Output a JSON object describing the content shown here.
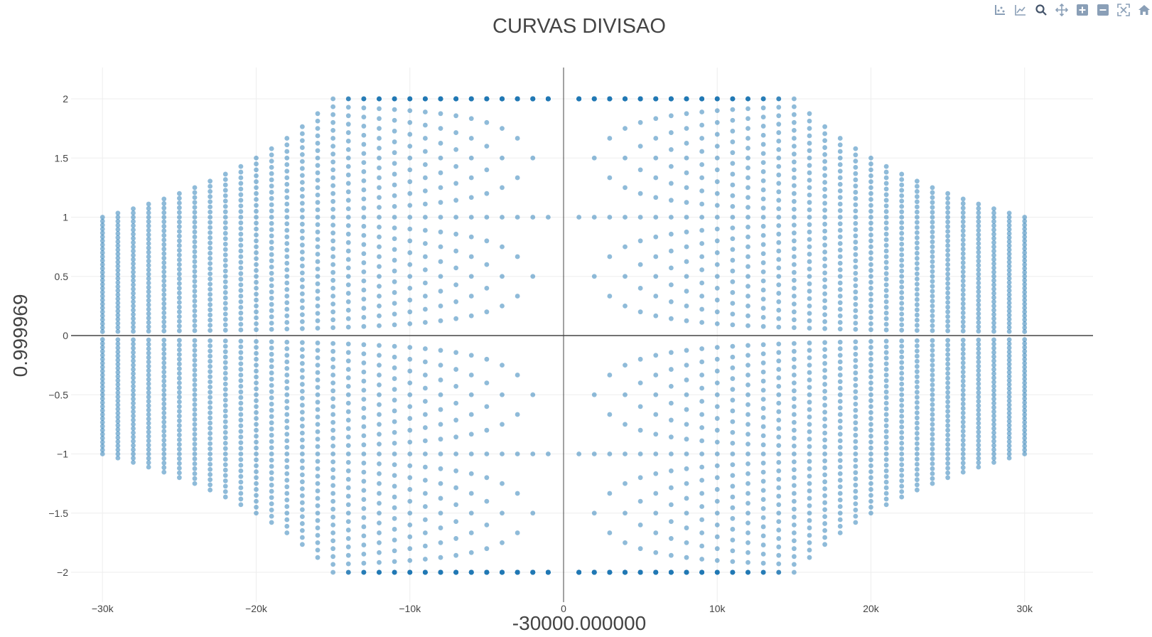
{
  "chart_data": {
    "type": "scatter",
    "title": "CURVAS DIVISAO",
    "xlabel": "-30000.000000",
    "ylabel": "0.999969",
    "xlim": [
      -30000,
      30000
    ],
    "ylim": [
      -2,
      2
    ],
    "x_ticks": [
      {
        "value": -30000,
        "label": "−30k"
      },
      {
        "value": -20000,
        "label": "−20k"
      },
      {
        "value": -10000,
        "label": "−10k"
      },
      {
        "value": 0,
        "label": "0"
      },
      {
        "value": 10000,
        "label": "10k"
      },
      {
        "value": 20000,
        "label": "20k"
      },
      {
        "value": 30000,
        "label": "30k"
      }
    ],
    "y_ticks": [
      {
        "value": 2,
        "label": "2"
      },
      {
        "value": 1.5,
        "label": "1.5"
      },
      {
        "value": 1,
        "label": "1"
      },
      {
        "value": 0.5,
        "label": "0.5"
      },
      {
        "value": 0,
        "label": "0"
      },
      {
        "value": -0.5,
        "label": "−0.5"
      },
      {
        "value": -1,
        "label": "−1"
      },
      {
        "value": -1.5,
        "label": "−1.5"
      },
      {
        "value": -2,
        "label": "−2"
      }
    ],
    "grid": true,
    "marker_color": "#1f77b4",
    "marker_opacity": 0.5,
    "x_step": 1000,
    "curves": [
      {
        "k": 1000
      },
      {
        "k": 2000
      },
      {
        "k": 3000
      },
      {
        "k": 4000
      },
      {
        "k": 5000
      },
      {
        "k": 6000
      },
      {
        "k": 7000
      },
      {
        "k": 8000
      },
      {
        "k": 9000
      },
      {
        "k": 10000
      },
      {
        "k": 11000
      },
      {
        "k": 12000
      },
      {
        "k": 13000
      },
      {
        "k": 14000
      },
      {
        "k": 15000
      },
      {
        "k": 16000
      },
      {
        "k": 17000
      },
      {
        "k": 18000
      },
      {
        "k": 19000
      },
      {
        "k": 20000
      },
      {
        "k": 21000
      },
      {
        "k": 22000
      },
      {
        "k": 23000
      },
      {
        "k": 24000
      },
      {
        "k": 25000
      },
      {
        "k": 26000
      },
      {
        "k": 27000
      },
      {
        "k": 28000
      },
      {
        "k": 29000
      },
      {
        "k": 30000
      }
    ],
    "relation": "y = k / x for k in curves, x from -30000 to 30000 in x_step increments, y clipped to ylim"
  },
  "modebar": {
    "icons": [
      "show-closest-icon",
      "compare-icon",
      "zoom-icon",
      "pan-icon",
      "zoom-in-icon",
      "zoom-out-icon",
      "autoscale-icon",
      "home-icon"
    ]
  }
}
